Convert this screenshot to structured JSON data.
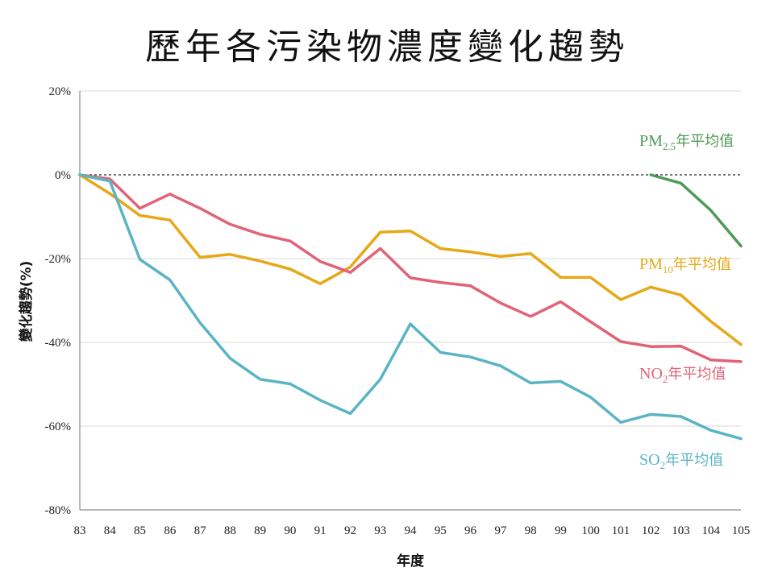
{
  "title": "歷年各污染物濃度變化趨勢",
  "chart_data": {
    "type": "line",
    "title": "歷年各污染物濃度變化趨勢",
    "xlabel": "年度",
    "ylabel": "變化趨勢(%)",
    "x": [
      "83",
      "84",
      "85",
      "86",
      "87",
      "88",
      "89",
      "90",
      "91",
      "92",
      "93",
      "94",
      "95",
      "96",
      "97",
      "98",
      "99",
      "100",
      "101",
      "102",
      "103",
      "104",
      "105"
    ],
    "ylim": [
      -80,
      20
    ],
    "yticks": [
      20,
      0,
      -20,
      -40,
      -60,
      -80
    ],
    "ytick_labels": [
      "20%",
      "0%",
      "-20%",
      "-40%",
      "-60%",
      "-80%"
    ],
    "grid": true,
    "reference_line": 0,
    "series": [
      {
        "name": "PM2.5年平均值",
        "label_parts": {
          "base": "PM",
          "sub": "2.5",
          "rest": "年平均值"
        },
        "color": "#4e9a57",
        "values": [
          null,
          null,
          null,
          null,
          null,
          null,
          null,
          null,
          null,
          null,
          null,
          null,
          null,
          null,
          null,
          null,
          null,
          null,
          null,
          0,
          -2,
          -8.5,
          -17
        ]
      },
      {
        "name": "PM10年平均值",
        "label_parts": {
          "base": "PM",
          "sub": "10",
          "rest": "年平均值"
        },
        "color": "#e6a817",
        "values": [
          0,
          -4.5,
          -9.7,
          -10.8,
          -19.7,
          -19,
          -20.6,
          -22.5,
          -26,
          -22,
          -13.7,
          -13.4,
          -17.6,
          -18.4,
          -19.5,
          -18.8,
          -24.5,
          -24.5,
          -29.8,
          -26.8,
          -28.7,
          -35,
          -40.5
        ]
      },
      {
        "name": "NO2年平均值",
        "label_parts": {
          "base": "NO",
          "sub": "2",
          "rest": "年平均值"
        },
        "color": "#e06377",
        "values": [
          0,
          -1,
          -8,
          -4.6,
          -8,
          -11.8,
          -14.2,
          -15.8,
          -20.7,
          -23.3,
          -17.6,
          -24.6,
          -25.7,
          -26.5,
          -30.6,
          -33.8,
          -30.3,
          -35.1,
          -39.8,
          -41,
          -40.9,
          -44.2,
          -44.6
        ]
      },
      {
        "name": "SO2年平均值",
        "label_parts": {
          "base": "SO",
          "sub": "2",
          "rest": "年平均值"
        },
        "color": "#5ab4c5",
        "values": [
          0,
          -1.5,
          -20.2,
          -25.1,
          -35.3,
          -43.8,
          -48.8,
          -49.9,
          -53.8,
          -57,
          -48.8,
          -35.6,
          -42.4,
          -43.5,
          -45.6,
          -49.7,
          -49.3,
          -53.1,
          -59.1,
          -57.2,
          -57.7,
          -61,
          -63
        ]
      }
    ]
  }
}
